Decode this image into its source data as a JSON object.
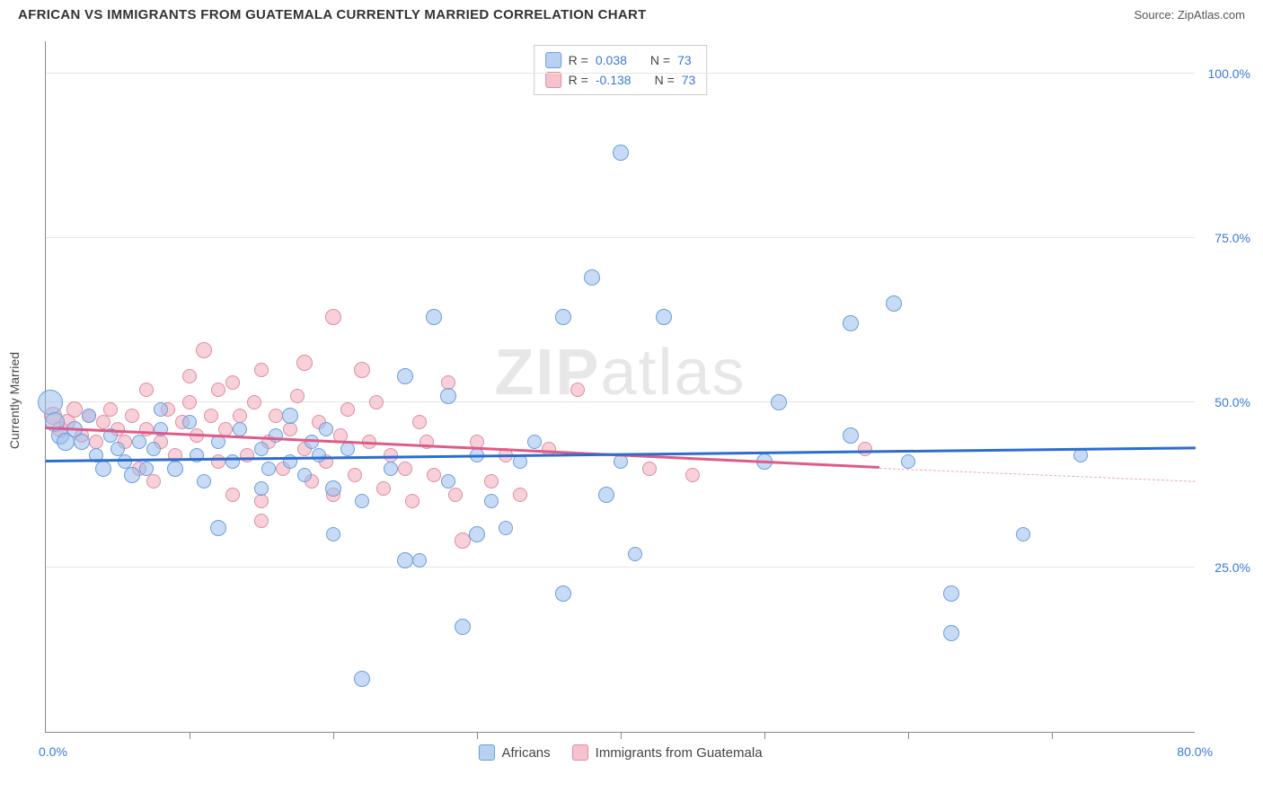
{
  "title": "AFRICAN VS IMMIGRANTS FROM GUATEMALA CURRENTLY MARRIED CORRELATION CHART",
  "source_label": "Source: ",
  "source_name": "ZipAtlas.com",
  "y_axis_title": "Currently Married",
  "watermark_a": "ZIP",
  "watermark_b": "atlas",
  "chart": {
    "type": "scatter",
    "xlim": [
      0,
      80
    ],
    "ylim": [
      0,
      105
    ],
    "x_min_label": "0.0%",
    "x_max_label": "80.0%",
    "y_ticks": [
      25,
      50,
      75,
      100
    ],
    "y_tick_labels": [
      "25.0%",
      "50.0%",
      "75.0%",
      "100.0%"
    ],
    "x_tick_positions": [
      10,
      20,
      30,
      40,
      50,
      60,
      70
    ],
    "grid_color": "#e6e6e6",
    "axis_color": "#888888",
    "label_color": "#3a78d8",
    "series_a": {
      "name": "Africans",
      "fill_color": "rgba(155,190,235,0.55)",
      "border_color": "#6a9de0",
      "trend_color": "#2d6cd0",
      "R_label": "R =",
      "R_value": "0.038",
      "N_label": "N =",
      "N_value": "73",
      "trend": {
        "x1": 0,
        "y1": 41,
        "x2": 80,
        "y2": 43
      },
      "points": [
        {
          "x": 0.3,
          "y": 50,
          "r": 14
        },
        {
          "x": 0.6,
          "y": 47,
          "r": 11
        },
        {
          "x": 1,
          "y": 45,
          "r": 10
        },
        {
          "x": 1.4,
          "y": 44,
          "r": 10
        },
        {
          "x": 2,
          "y": 46,
          "r": 9
        },
        {
          "x": 2.5,
          "y": 44,
          "r": 9
        },
        {
          "x": 3,
          "y": 48,
          "r": 8
        },
        {
          "x": 3.5,
          "y": 42,
          "r": 8
        },
        {
          "x": 4,
          "y": 40,
          "r": 9
        },
        {
          "x": 4.5,
          "y": 45,
          "r": 8
        },
        {
          "x": 5,
          "y": 43,
          "r": 8
        },
        {
          "x": 5.5,
          "y": 41,
          "r": 8
        },
        {
          "x": 6,
          "y": 39,
          "r": 9
        },
        {
          "x": 6.5,
          "y": 44,
          "r": 8
        },
        {
          "x": 7,
          "y": 40,
          "r": 8
        },
        {
          "x": 7.5,
          "y": 43,
          "r": 8
        },
        {
          "x": 8,
          "y": 46,
          "r": 8
        },
        {
          "x": 9,
          "y": 40,
          "r": 9
        },
        {
          "x": 10,
          "y": 47,
          "r": 8
        },
        {
          "x": 10.5,
          "y": 42,
          "r": 8
        },
        {
          "x": 11,
          "y": 38,
          "r": 8
        },
        {
          "x": 12,
          "y": 44,
          "r": 8
        },
        {
          "x": 12,
          "y": 31,
          "r": 9
        },
        {
          "x": 13,
          "y": 41,
          "r": 8
        },
        {
          "x": 13.5,
          "y": 46,
          "r": 8
        },
        {
          "x": 15,
          "y": 43,
          "r": 8
        },
        {
          "x": 15.5,
          "y": 40,
          "r": 8
        },
        {
          "x": 16,
          "y": 45,
          "r": 8
        },
        {
          "x": 17,
          "y": 41,
          "r": 8
        },
        {
          "x": 17,
          "y": 48,
          "r": 9
        },
        {
          "x": 18,
          "y": 39,
          "r": 8
        },
        {
          "x": 18.5,
          "y": 44,
          "r": 8
        },
        {
          "x": 19,
          "y": 42,
          "r": 8
        },
        {
          "x": 19.5,
          "y": 46,
          "r": 8
        },
        {
          "x": 20,
          "y": 37,
          "r": 9
        },
        {
          "x": 20,
          "y": 30,
          "r": 8
        },
        {
          "x": 21,
          "y": 43,
          "r": 8
        },
        {
          "x": 22,
          "y": 8,
          "r": 9
        },
        {
          "x": 22,
          "y": 35,
          "r": 8
        },
        {
          "x": 24,
          "y": 40,
          "r": 8
        },
        {
          "x": 25,
          "y": 54,
          "r": 9
        },
        {
          "x": 25,
          "y": 26,
          "r": 9
        },
        {
          "x": 26,
          "y": 26,
          "r": 8
        },
        {
          "x": 27,
          "y": 63,
          "r": 9
        },
        {
          "x": 28,
          "y": 51,
          "r": 9
        },
        {
          "x": 28,
          "y": 38,
          "r": 8
        },
        {
          "x": 29,
          "y": 16,
          "r": 9
        },
        {
          "x": 30,
          "y": 30,
          "r": 9
        },
        {
          "x": 30,
          "y": 42,
          "r": 8
        },
        {
          "x": 31,
          "y": 35,
          "r": 8
        },
        {
          "x": 32,
          "y": 31,
          "r": 8
        },
        {
          "x": 33,
          "y": 41,
          "r": 8
        },
        {
          "x": 34,
          "y": 44,
          "r": 8
        },
        {
          "x": 36,
          "y": 63,
          "r": 9
        },
        {
          "x": 36,
          "y": 21,
          "r": 9
        },
        {
          "x": 38,
          "y": 69,
          "r": 9
        },
        {
          "x": 39,
          "y": 36,
          "r": 9
        },
        {
          "x": 40,
          "y": 41,
          "r": 8
        },
        {
          "x": 40,
          "y": 88,
          "r": 9
        },
        {
          "x": 41,
          "y": 27,
          "r": 8
        },
        {
          "x": 43,
          "y": 63,
          "r": 9
        },
        {
          "x": 50,
          "y": 41,
          "r": 9
        },
        {
          "x": 51,
          "y": 50,
          "r": 9
        },
        {
          "x": 56,
          "y": 45,
          "r": 9
        },
        {
          "x": 56,
          "y": 62,
          "r": 9
        },
        {
          "x": 59,
          "y": 65,
          "r": 9
        },
        {
          "x": 60,
          "y": 41,
          "r": 8
        },
        {
          "x": 63,
          "y": 21,
          "r": 9
        },
        {
          "x": 63,
          "y": 15,
          "r": 9
        },
        {
          "x": 68,
          "y": 30,
          "r": 8
        },
        {
          "x": 72,
          "y": 42,
          "r": 8
        },
        {
          "x": 15,
          "y": 37,
          "r": 8
        },
        {
          "x": 8,
          "y": 49,
          "r": 8
        }
      ]
    },
    "series_b": {
      "name": "Immigrants from Guatemala",
      "fill_color": "rgba(240,170,185,0.55)",
      "border_color": "#e08ca0",
      "trend_color": "#e05a88",
      "R_label": "R =",
      "R_value": "-0.138",
      "N_label": "N =",
      "N_value": "73",
      "trend": {
        "x1": 0,
        "y1": 46,
        "x2": 58,
        "y2": 40
      },
      "dash": {
        "x1": 58,
        "y1": 40,
        "x2": 80,
        "y2": 38
      },
      "points": [
        {
          "x": 0.5,
          "y": 48,
          "r": 10
        },
        {
          "x": 1,
          "y": 46,
          "r": 9
        },
        {
          "x": 1.5,
          "y": 47,
          "r": 9
        },
        {
          "x": 2,
          "y": 49,
          "r": 9
        },
        {
          "x": 2.5,
          "y": 45,
          "r": 8
        },
        {
          "x": 3,
          "y": 48,
          "r": 8
        },
        {
          "x": 3.5,
          "y": 44,
          "r": 8
        },
        {
          "x": 4,
          "y": 47,
          "r": 8
        },
        {
          "x": 4.5,
          "y": 49,
          "r": 8
        },
        {
          "x": 5,
          "y": 46,
          "r": 8
        },
        {
          "x": 5.5,
          "y": 44,
          "r": 8
        },
        {
          "x": 6,
          "y": 48,
          "r": 8
        },
        {
          "x": 6.5,
          "y": 40,
          "r": 8
        },
        {
          "x": 7,
          "y": 46,
          "r": 8
        },
        {
          "x": 7,
          "y": 52,
          "r": 8
        },
        {
          "x": 7.5,
          "y": 38,
          "r": 8
        },
        {
          "x": 8,
          "y": 44,
          "r": 8
        },
        {
          "x": 8.5,
          "y": 49,
          "r": 8
        },
        {
          "x": 9,
          "y": 42,
          "r": 8
        },
        {
          "x": 9.5,
          "y": 47,
          "r": 8
        },
        {
          "x": 10,
          "y": 50,
          "r": 8
        },
        {
          "x": 10,
          "y": 54,
          "r": 8
        },
        {
          "x": 10.5,
          "y": 45,
          "r": 8
        },
        {
          "x": 11,
          "y": 58,
          "r": 9
        },
        {
          "x": 11.5,
          "y": 48,
          "r": 8
        },
        {
          "x": 12,
          "y": 52,
          "r": 8
        },
        {
          "x": 12,
          "y": 41,
          "r": 8
        },
        {
          "x": 12.5,
          "y": 46,
          "r": 8
        },
        {
          "x": 13,
          "y": 53,
          "r": 8
        },
        {
          "x": 13,
          "y": 36,
          "r": 8
        },
        {
          "x": 13.5,
          "y": 48,
          "r": 8
        },
        {
          "x": 14,
          "y": 42,
          "r": 8
        },
        {
          "x": 14.5,
          "y": 50,
          "r": 8
        },
        {
          "x": 15,
          "y": 35,
          "r": 8
        },
        {
          "x": 15,
          "y": 55,
          "r": 8
        },
        {
          "x": 15.5,
          "y": 44,
          "r": 8
        },
        {
          "x": 16,
          "y": 48,
          "r": 8
        },
        {
          "x": 16.5,
          "y": 40,
          "r": 8
        },
        {
          "x": 17,
          "y": 46,
          "r": 8
        },
        {
          "x": 17.5,
          "y": 51,
          "r": 8
        },
        {
          "x": 18,
          "y": 43,
          "r": 8
        },
        {
          "x": 18,
          "y": 56,
          "r": 9
        },
        {
          "x": 18.5,
          "y": 38,
          "r": 8
        },
        {
          "x": 19,
          "y": 47,
          "r": 8
        },
        {
          "x": 19.5,
          "y": 41,
          "r": 8
        },
        {
          "x": 20,
          "y": 63,
          "r": 9
        },
        {
          "x": 20,
          "y": 36,
          "r": 8
        },
        {
          "x": 20.5,
          "y": 45,
          "r": 8
        },
        {
          "x": 21,
          "y": 49,
          "r": 8
        },
        {
          "x": 21.5,
          "y": 39,
          "r": 8
        },
        {
          "x": 22,
          "y": 55,
          "r": 9
        },
        {
          "x": 22.5,
          "y": 44,
          "r": 8
        },
        {
          "x": 23,
          "y": 50,
          "r": 8
        },
        {
          "x": 23.5,
          "y": 37,
          "r": 8
        },
        {
          "x": 24,
          "y": 42,
          "r": 8
        },
        {
          "x": 25,
          "y": 40,
          "r": 8
        },
        {
          "x": 25.5,
          "y": 35,
          "r": 8
        },
        {
          "x": 26,
          "y": 47,
          "r": 8
        },
        {
          "x": 26.5,
          "y": 44,
          "r": 8
        },
        {
          "x": 27,
          "y": 39,
          "r": 8
        },
        {
          "x": 28,
          "y": 53,
          "r": 8
        },
        {
          "x": 28.5,
          "y": 36,
          "r": 8
        },
        {
          "x": 29,
          "y": 29,
          "r": 9
        },
        {
          "x": 30,
          "y": 44,
          "r": 8
        },
        {
          "x": 31,
          "y": 38,
          "r": 8
        },
        {
          "x": 32,
          "y": 42,
          "r": 8
        },
        {
          "x": 33,
          "y": 36,
          "r": 8
        },
        {
          "x": 35,
          "y": 43,
          "r": 8
        },
        {
          "x": 37,
          "y": 52,
          "r": 8
        },
        {
          "x": 42,
          "y": 40,
          "r": 8
        },
        {
          "x": 45,
          "y": 39,
          "r": 8
        },
        {
          "x": 57,
          "y": 43,
          "r": 8
        },
        {
          "x": 15,
          "y": 32,
          "r": 8
        }
      ]
    }
  }
}
